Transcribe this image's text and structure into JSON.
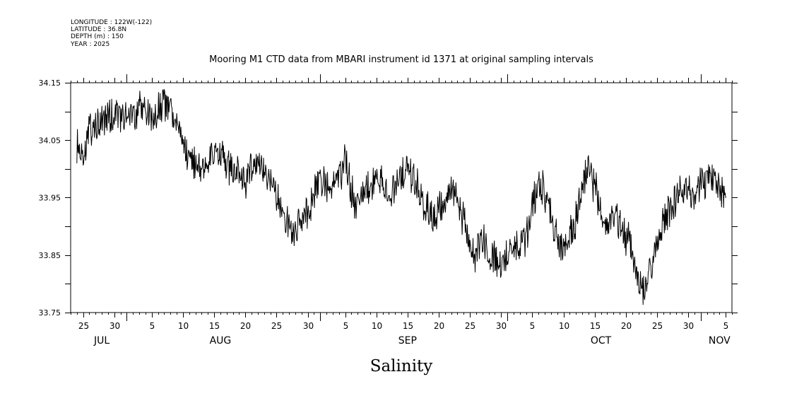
{
  "header": {
    "longitude": "LONGITUDE : 122W(-122)",
    "latitude": "LATITUDE : 36.8N",
    "depth": "DEPTH (m) : 150",
    "year": "YEAR : 2025"
  },
  "chart_data": {
    "type": "line",
    "title": "Mooring M1 CTD data from MBARI instrument id 1371 at original sampling intervals",
    "xlabel": "",
    "ylabel": "Salinity",
    "xlim": [
      "2025-07-23",
      "2025-11-06"
    ],
    "ylim": [
      33.75,
      34.15
    ],
    "y_ticks": [
      "33.75",
      "33.85",
      "33.95",
      "34.05",
      "34.15"
    ],
    "x_ticks": [
      {
        "label": "25",
        "date": "2025-07-25"
      },
      {
        "label": "30",
        "date": "2025-07-30"
      },
      {
        "label": "5",
        "date": "2025-08-05"
      },
      {
        "label": "10",
        "date": "2025-08-10"
      },
      {
        "label": "15",
        "date": "2025-08-15"
      },
      {
        "label": "20",
        "date": "2025-08-20"
      },
      {
        "label": "25",
        "date": "2025-08-25"
      },
      {
        "label": "30",
        "date": "2025-08-30"
      },
      {
        "label": "5",
        "date": "2025-09-05"
      },
      {
        "label": "10",
        "date": "2025-09-10"
      },
      {
        "label": "15",
        "date": "2025-09-15"
      },
      {
        "label": "20",
        "date": "2025-09-20"
      },
      {
        "label": "25",
        "date": "2025-09-25"
      },
      {
        "label": "30",
        "date": "2025-09-30"
      },
      {
        "label": "5",
        "date": "2025-10-05"
      },
      {
        "label": "10",
        "date": "2025-10-10"
      },
      {
        "label": "15",
        "date": "2025-10-15"
      },
      {
        "label": "20",
        "date": "2025-10-20"
      },
      {
        "label": "25",
        "date": "2025-10-25"
      },
      {
        "label": "30",
        "date": "2025-10-30"
      },
      {
        "label": "5",
        "date": "2025-11-05"
      }
    ],
    "month_labels": [
      {
        "label": "JUL",
        "date": "2025-07-28"
      },
      {
        "label": "AUG",
        "date": "2025-08-16"
      },
      {
        "label": "SEP",
        "date": "2025-09-15"
      },
      {
        "label": "OCT",
        "date": "2025-10-16"
      },
      {
        "label": "NOV",
        "date": "2025-11-04"
      }
    ],
    "grid": false,
    "series": [
      {
        "x": [
          "2025-07-24",
          "2025-07-25",
          "2025-07-26",
          "2025-07-27",
          "2025-07-28",
          "2025-07-29",
          "2025-07-30",
          "2025-07-31",
          "2025-08-01",
          "2025-08-02",
          "2025-08-03",
          "2025-08-04",
          "2025-08-05",
          "2025-08-06",
          "2025-08-07",
          "2025-08-08",
          "2025-08-09",
          "2025-08-10",
          "2025-08-11",
          "2025-08-12",
          "2025-08-13",
          "2025-08-14",
          "2025-08-15",
          "2025-08-16",
          "2025-08-17",
          "2025-08-18",
          "2025-08-19",
          "2025-08-20",
          "2025-08-21",
          "2025-08-22",
          "2025-08-23",
          "2025-08-24",
          "2025-08-25",
          "2025-08-26",
          "2025-08-27",
          "2025-08-28",
          "2025-08-29",
          "2025-08-30",
          "2025-08-31",
          "2025-09-01",
          "2025-09-02",
          "2025-09-03",
          "2025-09-04",
          "2025-09-05",
          "2025-09-06",
          "2025-09-07",
          "2025-09-08",
          "2025-09-09",
          "2025-09-10",
          "2025-09-11",
          "2025-09-12",
          "2025-09-13",
          "2025-09-14",
          "2025-09-15",
          "2025-09-16",
          "2025-09-17",
          "2025-09-18",
          "2025-09-19",
          "2025-09-20",
          "2025-09-21",
          "2025-09-22",
          "2025-09-23",
          "2025-09-24",
          "2025-09-25",
          "2025-09-26",
          "2025-09-27",
          "2025-09-28",
          "2025-09-29",
          "2025-09-30",
          "2025-10-01",
          "2025-10-02",
          "2025-10-03",
          "2025-10-04",
          "2025-10-05",
          "2025-10-06",
          "2025-10-07",
          "2025-10-08",
          "2025-10-09",
          "2025-10-10",
          "2025-10-11",
          "2025-10-12",
          "2025-10-13",
          "2025-10-14",
          "2025-10-15",
          "2025-10-16",
          "2025-10-17",
          "2025-10-18",
          "2025-10-19",
          "2025-10-20",
          "2025-10-21",
          "2025-10-22",
          "2025-10-23",
          "2025-10-24",
          "2025-10-25",
          "2025-10-26",
          "2025-10-27",
          "2025-10-28",
          "2025-10-29",
          "2025-10-30",
          "2025-10-31",
          "2025-11-01",
          "2025-11-02",
          "2025-11-03",
          "2025-11-04",
          "2025-11-05"
        ],
        "y": [
          34.04,
          34.03,
          34.06,
          34.07,
          34.08,
          34.09,
          34.1,
          34.09,
          34.1,
          34.09,
          34.1,
          34.11,
          34.08,
          34.1,
          34.12,
          34.1,
          34.08,
          34.04,
          34.02,
          34.0,
          34.0,
          34.02,
          34.03,
          34.02,
          34.01,
          33.99,
          34.0,
          33.98,
          34.0,
          34.01,
          34.0,
          33.98,
          33.95,
          33.92,
          33.9,
          33.89,
          33.9,
          33.93,
          33.95,
          33.99,
          33.96,
          33.97,
          33.98,
          34.02,
          33.96,
          33.93,
          33.96,
          33.97,
          33.98,
          33.98,
          33.95,
          33.97,
          33.99,
          34.0,
          33.98,
          33.96,
          33.93,
          33.91,
          33.93,
          33.94,
          33.97,
          33.95,
          33.91,
          33.86,
          33.85,
          33.88,
          33.86,
          33.84,
          33.83,
          33.85,
          33.87,
          33.86,
          33.88,
          33.93,
          33.98,
          33.96,
          33.92,
          33.88,
          33.86,
          33.88,
          33.91,
          33.98,
          34.0,
          33.97,
          33.93,
          33.9,
          33.92,
          33.9,
          33.88,
          33.86,
          33.8,
          33.79,
          33.82,
          33.87,
          33.91,
          33.93,
          33.94,
          33.96,
          33.97,
          33.95,
          33.97,
          33.98,
          33.99,
          33.97,
          33.95
        ]
      }
    ]
  }
}
